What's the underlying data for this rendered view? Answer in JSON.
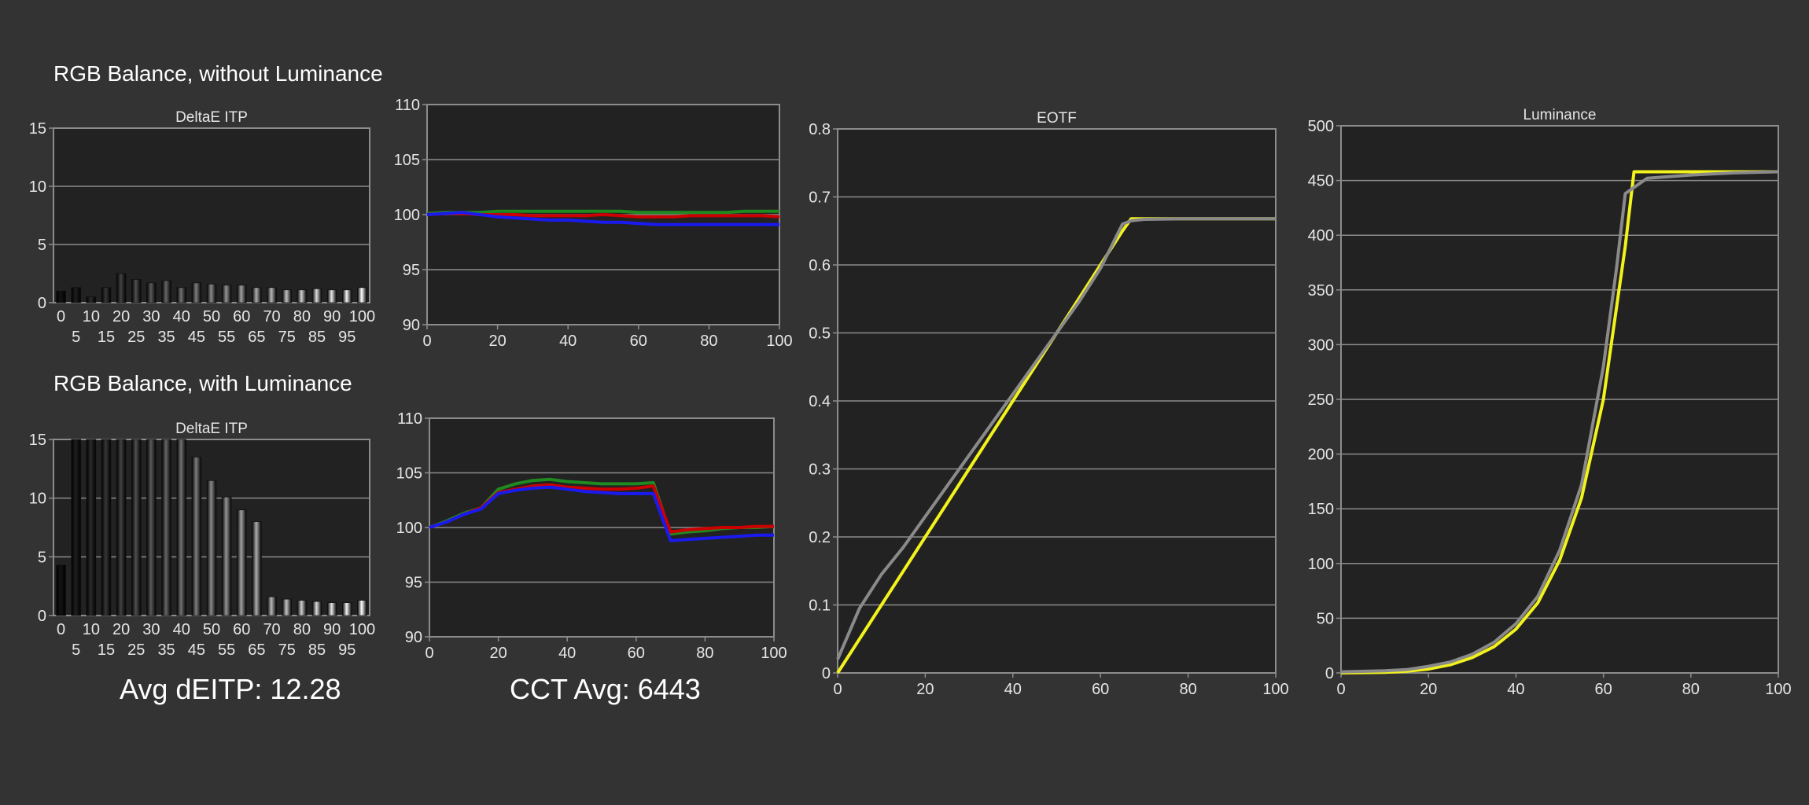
{
  "section_titles": {
    "without_luminance": "RGB Balance, without Luminance",
    "with_luminance": "RGB Balance, with Luminance"
  },
  "summary": {
    "avg_deitp": "Avg dEITP: 12.28",
    "cct_avg": "CCT Avg: 6443"
  },
  "colors": {
    "background": "#333333",
    "plot_bg": "#222222",
    "grid": "#8c8c8c",
    "red": "#cc0000",
    "green": "#1f8a1f",
    "blue": "#1a1aee",
    "target": "#f2f21c",
    "measured": "#8a8a8a"
  },
  "chart_data": [
    {
      "id": "deltae-without",
      "type": "bar",
      "title": "DeltaE ITP",
      "xlabel": "",
      "ylabel": "",
      "ylim": [
        0,
        15
      ],
      "yticks": [
        0,
        5,
        10,
        15
      ],
      "categories": [
        0,
        5,
        10,
        15,
        20,
        25,
        30,
        35,
        40,
        45,
        50,
        55,
        60,
        65,
        70,
        75,
        80,
        85,
        90,
        95,
        100
      ],
      "values": [
        1.0,
        1.3,
        0.5,
        1.3,
        2.5,
        2.0,
        1.7,
        1.9,
        1.3,
        1.7,
        1.6,
        1.5,
        1.5,
        1.3,
        1.3,
        1.1,
        1.1,
        1.2,
        1.1,
        1.1,
        1.3
      ],
      "grid": true
    },
    {
      "id": "rgb-without",
      "type": "line",
      "title": "",
      "ylim": [
        90,
        110
      ],
      "yticks": [
        90,
        95,
        100,
        105,
        110
      ],
      "xlim": [
        0,
        100
      ],
      "xticks": [
        0,
        20,
        40,
        60,
        80,
        100
      ],
      "x": [
        0,
        5,
        10,
        15,
        20,
        25,
        30,
        35,
        40,
        45,
        50,
        55,
        60,
        65,
        70,
        75,
        80,
        85,
        90,
        95,
        100
      ],
      "series": [
        {
          "color_key": "green",
          "values": [
            100.1,
            100.2,
            100.2,
            100.2,
            100.3,
            100.3,
            100.3,
            100.3,
            100.3,
            100.3,
            100.3,
            100.3,
            100.2,
            100.2,
            100.2,
            100.2,
            100.2,
            100.2,
            100.3,
            100.3,
            100.3
          ]
        },
        {
          "color_key": "red",
          "values": [
            100.0,
            100.1,
            100.1,
            100.0,
            100.0,
            100.0,
            99.9,
            99.9,
            99.9,
            99.9,
            100.0,
            99.9,
            99.8,
            99.8,
            99.8,
            99.9,
            99.9,
            99.9,
            99.9,
            99.9,
            99.8
          ]
        },
        {
          "color_key": "blue",
          "values": [
            100.0,
            100.1,
            100.2,
            100.0,
            99.8,
            99.7,
            99.6,
            99.5,
            99.5,
            99.4,
            99.3,
            99.3,
            99.2,
            99.1,
            99.1,
            99.1,
            99.1,
            99.1,
            99.1,
            99.1,
            99.1
          ]
        }
      ],
      "grid": true
    },
    {
      "id": "deltae-with",
      "type": "bar",
      "title": "DeltaE ITP",
      "xlabel": "",
      "ylabel": "",
      "ylim": [
        0,
        15
      ],
      "yticks": [
        0,
        5,
        10,
        15
      ],
      "categories": [
        0,
        5,
        10,
        15,
        20,
        25,
        30,
        35,
        40,
        45,
        50,
        55,
        60,
        65,
        70,
        75,
        80,
        85,
        90,
        95,
        100
      ],
      "values": [
        4.3,
        15,
        15,
        15,
        15,
        15,
        15,
        15,
        15,
        13.5,
        11.5,
        10.1,
        9.0,
        8.0,
        1.6,
        1.4,
        1.3,
        1.2,
        1.1,
        1.1,
        1.3
      ],
      "grid": true
    },
    {
      "id": "rgb-with",
      "type": "line",
      "title": "",
      "ylim": [
        90,
        110
      ],
      "yticks": [
        90,
        95,
        100,
        105,
        110
      ],
      "xlim": [
        0,
        100
      ],
      "xticks": [
        0,
        20,
        40,
        60,
        80,
        100
      ],
      "x": [
        0,
        5,
        10,
        15,
        20,
        25,
        30,
        35,
        40,
        45,
        50,
        55,
        60,
        65,
        70,
        75,
        80,
        85,
        90,
        95,
        100
      ],
      "series": [
        {
          "color_key": "green",
          "values": [
            100.0,
            100.6,
            101.3,
            101.8,
            103.5,
            104.0,
            104.3,
            104.4,
            104.2,
            104.1,
            104.0,
            104.0,
            104.0,
            104.1,
            99.4,
            99.6,
            99.7,
            99.9,
            100.0,
            100.0,
            100.1
          ]
        },
        {
          "color_key": "red",
          "values": [
            100.0,
            100.5,
            101.2,
            101.8,
            103.2,
            103.5,
            103.8,
            103.9,
            103.7,
            103.6,
            103.5,
            103.5,
            103.6,
            103.8,
            99.6,
            99.8,
            99.9,
            100.0,
            100.0,
            100.1,
            100.1
          ]
        },
        {
          "color_key": "blue",
          "values": [
            100.0,
            100.5,
            101.2,
            101.7,
            103.1,
            103.4,
            103.6,
            103.7,
            103.5,
            103.3,
            103.2,
            103.1,
            103.1,
            103.1,
            98.8,
            98.9,
            99.0,
            99.1,
            99.2,
            99.3,
            99.3
          ]
        }
      ],
      "grid": true
    },
    {
      "id": "eotf",
      "type": "line",
      "title": "EOTF",
      "ylim": [
        0,
        0.8
      ],
      "yticks": [
        0,
        0.1,
        0.2,
        0.3,
        0.4,
        0.5,
        0.6,
        0.7,
        0.8
      ],
      "xlim": [
        0,
        100
      ],
      "xticks": [
        0,
        20,
        40,
        60,
        80,
        100
      ],
      "series": [
        {
          "color_key": "target",
          "x": [
            0,
            5,
            10,
            15,
            20,
            25,
            30,
            35,
            40,
            45,
            50,
            55,
            60,
            65,
            67,
            70,
            80,
            90,
            100
          ],
          "values": [
            0.0,
            0.05,
            0.1,
            0.15,
            0.2,
            0.25,
            0.3,
            0.35,
            0.4,
            0.45,
            0.5,
            0.55,
            0.6,
            0.65,
            0.668,
            0.668,
            0.668,
            0.668,
            0.668
          ]
        },
        {
          "color_key": "measured",
          "x": [
            0,
            5,
            10,
            15,
            20,
            25,
            30,
            35,
            40,
            45,
            50,
            55,
            60,
            65,
            67,
            70,
            80,
            90,
            100
          ],
          "values": [
            0.02,
            0.095,
            0.145,
            0.185,
            0.23,
            0.275,
            0.32,
            0.365,
            0.41,
            0.455,
            0.5,
            0.545,
            0.595,
            0.66,
            0.665,
            0.667,
            0.668,
            0.668,
            0.668
          ]
        }
      ],
      "grid": true
    },
    {
      "id": "luminance",
      "type": "line",
      "title": "Luminance",
      "ylim": [
        0,
        500
      ],
      "yticks": [
        0,
        50,
        100,
        150,
        200,
        250,
        300,
        350,
        400,
        450,
        500
      ],
      "xlim": [
        0,
        100
      ],
      "xticks": [
        0,
        20,
        40,
        60,
        80,
        100
      ],
      "series": [
        {
          "color_key": "target",
          "x": [
            0,
            10,
            15,
            20,
            25,
            30,
            35,
            40,
            45,
            50,
            55,
            60,
            65,
            67,
            70,
            80,
            90,
            100
          ],
          "values": [
            0,
            0.5,
            1.5,
            3.5,
            7.5,
            14,
            24,
            40,
            64,
            103,
            160,
            250,
            390,
            458,
            458,
            458,
            458,
            458
          ]
        },
        {
          "color_key": "measured",
          "x": [
            0,
            10,
            15,
            20,
            25,
            30,
            35,
            40,
            45,
            50,
            55,
            60,
            63,
            65,
            70,
            80,
            90,
            100
          ],
          "values": [
            1,
            2,
            3,
            6,
            10,
            17,
            28,
            45,
            70,
            112,
            172,
            280,
            370,
            438,
            452,
            455,
            457,
            458
          ]
        }
      ],
      "grid": true
    }
  ]
}
